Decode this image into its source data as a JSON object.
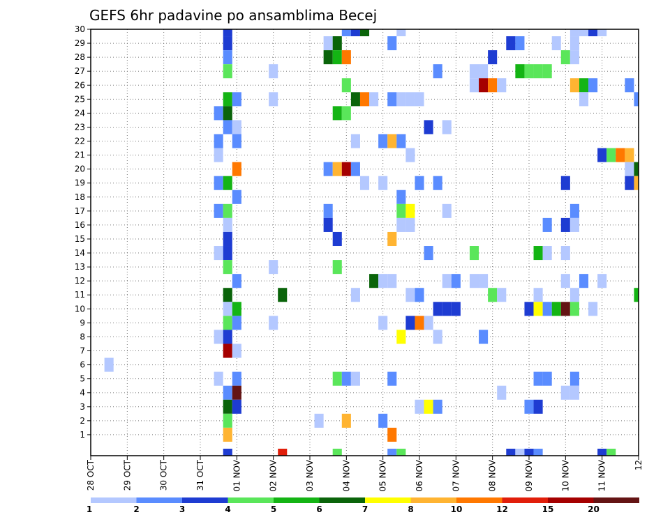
{
  "chart_data": {
    "type": "heatmap",
    "title": "GEFS 6hr padavine po ansamblima Becej",
    "xlabel": "",
    "ylabel": "",
    "x_tick_labels": [
      "28 OCT",
      "29 OCT",
      "30 OCT",
      "31 OCT",
      "01 NOV",
      "02 NOV",
      "03 NOV",
      "04 NOV",
      "05 NOV",
      "06 NOV",
      "07 NOV",
      "08 NOV",
      "09 NOV",
      "10 NOV",
      "11 NOV",
      "12"
    ],
    "y_tick_labels": [
      "1",
      "2",
      "3",
      "4",
      "5",
      "6",
      "7",
      "8",
      "9",
      "10",
      "11",
      "12",
      "13",
      "14",
      "15",
      "16",
      "17",
      "18",
      "19",
      "20",
      "21",
      "22",
      "23",
      "24",
      "25",
      "26",
      "27",
      "28",
      "29",
      "30"
    ],
    "x_range_steps": [
      0,
      60
    ],
    "y_range_members": [
      0,
      30
    ],
    "grid": "dotted",
    "colorbar": {
      "placement": "bottom",
      "tick_labels": [
        "1",
        "2",
        "3",
        "4",
        "5",
        "6",
        "7",
        "8",
        "10",
        "12",
        "15",
        "20"
      ],
      "colors": [
        "#b4c8ff",
        "#5a8cff",
        "#1e3cd2",
        "#5ae65a",
        "#14b414",
        "#0a640a",
        "#ffff00",
        "#ffb432",
        "#ff7800",
        "#e11e0a",
        "#a50000",
        "#641414"
      ]
    },
    "cells": [
      [
        15,
        30,
        3
      ],
      [
        28,
        30,
        2
      ],
      [
        29,
        30,
        3
      ],
      [
        30,
        30,
        6
      ],
      [
        34,
        30,
        1
      ],
      [
        53,
        30,
        1
      ],
      [
        54,
        30,
        1
      ],
      [
        55,
        30,
        3
      ],
      [
        56,
        30,
        1
      ],
      [
        15,
        29,
        3
      ],
      [
        26,
        29,
        1
      ],
      [
        27,
        29,
        6
      ],
      [
        33,
        29,
        2
      ],
      [
        46,
        29,
        3
      ],
      [
        47,
        29,
        2
      ],
      [
        51,
        29,
        1
      ],
      [
        53,
        29,
        1
      ],
      [
        15,
        28,
        2
      ],
      [
        26,
        28,
        6
      ],
      [
        27,
        28,
        5
      ],
      [
        28,
        28,
        9
      ],
      [
        44,
        28,
        3
      ],
      [
        52,
        28,
        4
      ],
      [
        53,
        28,
        1
      ],
      [
        15,
        27,
        4
      ],
      [
        20,
        27,
        1
      ],
      [
        38,
        27,
        2
      ],
      [
        42,
        27,
        1
      ],
      [
        43,
        27,
        1
      ],
      [
        47,
        27,
        5
      ],
      [
        48,
        27,
        4
      ],
      [
        49,
        27,
        4
      ],
      [
        50,
        27,
        4
      ],
      [
        28,
        26,
        4
      ],
      [
        42,
        26,
        1
      ],
      [
        43,
        26,
        11
      ],
      [
        44,
        26,
        9
      ],
      [
        45,
        26,
        1
      ],
      [
        53,
        26,
        8
      ],
      [
        54,
        26,
        5
      ],
      [
        55,
        26,
        2
      ],
      [
        59,
        26,
        2
      ],
      [
        15,
        25,
        5
      ],
      [
        16,
        25,
        2
      ],
      [
        20,
        25,
        1
      ],
      [
        29,
        25,
        6
      ],
      [
        30,
        25,
        9
      ],
      [
        31,
        25,
        1
      ],
      [
        33,
        25,
        2
      ],
      [
        34,
        25,
        1
      ],
      [
        35,
        25,
        1
      ],
      [
        36,
        25,
        1
      ],
      [
        54,
        25,
        1
      ],
      [
        60,
        25,
        2
      ],
      [
        14,
        24,
        2
      ],
      [
        15,
        24,
        6
      ],
      [
        27,
        24,
        5
      ],
      [
        28,
        24,
        4
      ],
      [
        15,
        23,
        2
      ],
      [
        16,
        23,
        1
      ],
      [
        37,
        23,
        3
      ],
      [
        39,
        23,
        1
      ],
      [
        14,
        22,
        2
      ],
      [
        16,
        22,
        2
      ],
      [
        29,
        22,
        1
      ],
      [
        32,
        22,
        2
      ],
      [
        33,
        22,
        8
      ],
      [
        34,
        22,
        2
      ],
      [
        14,
        21,
        1
      ],
      [
        35,
        21,
        1
      ],
      [
        56,
        21,
        3
      ],
      [
        57,
        21,
        4
      ],
      [
        58,
        21,
        9
      ],
      [
        59,
        21,
        8
      ],
      [
        16,
        20,
        9
      ],
      [
        26,
        20,
        2
      ],
      [
        27,
        20,
        8
      ],
      [
        28,
        20,
        11
      ],
      [
        29,
        20,
        2
      ],
      [
        59,
        20,
        1
      ],
      [
        60,
        20,
        6
      ],
      [
        14,
        19,
        2
      ],
      [
        15,
        19,
        5
      ],
      [
        30,
        19,
        1
      ],
      [
        32,
        19,
        1
      ],
      [
        36,
        19,
        2
      ],
      [
        38,
        19,
        2
      ],
      [
        52,
        19,
        3
      ],
      [
        59,
        19,
        3
      ],
      [
        60,
        19,
        8
      ],
      [
        16,
        18,
        2
      ],
      [
        34,
        18,
        2
      ],
      [
        14,
        17,
        2
      ],
      [
        15,
        17,
        4
      ],
      [
        26,
        17,
        2
      ],
      [
        34,
        17,
        4
      ],
      [
        35,
        17,
        7
      ],
      [
        39,
        17,
        1
      ],
      [
        53,
        17,
        2
      ],
      [
        15,
        16,
        1
      ],
      [
        26,
        16,
        3
      ],
      [
        34,
        16,
        1
      ],
      [
        35,
        16,
        1
      ],
      [
        50,
        16,
        2
      ],
      [
        52,
        16,
        3
      ],
      [
        53,
        16,
        1
      ],
      [
        15,
        15,
        3
      ],
      [
        27,
        15,
        3
      ],
      [
        33,
        15,
        8
      ],
      [
        14,
        14,
        1
      ],
      [
        15,
        14,
        3
      ],
      [
        37,
        14,
        2
      ],
      [
        42,
        14,
        4
      ],
      [
        49,
        14,
        5
      ],
      [
        50,
        14,
        1
      ],
      [
        52,
        14,
        1
      ],
      [
        15,
        13,
        4
      ],
      [
        20,
        13,
        1
      ],
      [
        27,
        13,
        4
      ],
      [
        16,
        12,
        2
      ],
      [
        31,
        12,
        6
      ],
      [
        32,
        12,
        1
      ],
      [
        33,
        12,
        1
      ],
      [
        39,
        12,
        1
      ],
      [
        40,
        12,
        2
      ],
      [
        42,
        12,
        1
      ],
      [
        43,
        12,
        1
      ],
      [
        52,
        12,
        1
      ],
      [
        54,
        12,
        2
      ],
      [
        56,
        12,
        1
      ],
      [
        15,
        11,
        6
      ],
      [
        21,
        11,
        6
      ],
      [
        29,
        11,
        1
      ],
      [
        35,
        11,
        1
      ],
      [
        36,
        11,
        2
      ],
      [
        44,
        11,
        4
      ],
      [
        45,
        11,
        1
      ],
      [
        49,
        11,
        1
      ],
      [
        53,
        11,
        1
      ],
      [
        60,
        11,
        5
      ],
      [
        15,
        10,
        1
      ],
      [
        16,
        10,
        5
      ],
      [
        38,
        10,
        3
      ],
      [
        39,
        10,
        3
      ],
      [
        40,
        10,
        3
      ],
      [
        48,
        10,
        3
      ],
      [
        49,
        10,
        7
      ],
      [
        50,
        10,
        2
      ],
      [
        51,
        10,
        5
      ],
      [
        52,
        10,
        12
      ],
      [
        53,
        10,
        4
      ],
      [
        55,
        10,
        1
      ],
      [
        15,
        9,
        4
      ],
      [
        16,
        9,
        2
      ],
      [
        20,
        9,
        1
      ],
      [
        32,
        9,
        1
      ],
      [
        35,
        9,
        3
      ],
      [
        36,
        9,
        9
      ],
      [
        37,
        9,
        1
      ],
      [
        14,
        8,
        1
      ],
      [
        15,
        8,
        3
      ],
      [
        34,
        8,
        7
      ],
      [
        38,
        8,
        1
      ],
      [
        43,
        8,
        2
      ],
      [
        15,
        7,
        11
      ],
      [
        16,
        7,
        1
      ],
      [
        2,
        6,
        1
      ],
      [
        14,
        5,
        1
      ],
      [
        16,
        5,
        2
      ],
      [
        27,
        5,
        4
      ],
      [
        28,
        5,
        2
      ],
      [
        29,
        5,
        1
      ],
      [
        33,
        5,
        2
      ],
      [
        49,
        5,
        2
      ],
      [
        50,
        5,
        2
      ],
      [
        53,
        5,
        2
      ],
      [
        15,
        4,
        2
      ],
      [
        16,
        4,
        12
      ],
      [
        45,
        4,
        1
      ],
      [
        52,
        4,
        1
      ],
      [
        53,
        4,
        1
      ],
      [
        15,
        3,
        6
      ],
      [
        16,
        3,
        3
      ],
      [
        36,
        3,
        1
      ],
      [
        37,
        3,
        7
      ],
      [
        38,
        3,
        2
      ],
      [
        48,
        3,
        2
      ],
      [
        49,
        3,
        3
      ],
      [
        15,
        2,
        4
      ],
      [
        25,
        2,
        1
      ],
      [
        28,
        2,
        8
      ],
      [
        32,
        2,
        2
      ],
      [
        15,
        1,
        8
      ],
      [
        33,
        1,
        9
      ],
      [
        15,
        0,
        3
      ],
      [
        21,
        0,
        10
      ],
      [
        27,
        0,
        4
      ],
      [
        33,
        0,
        2
      ],
      [
        34,
        0,
        4
      ],
      [
        46,
        0,
        3
      ],
      [
        47,
        0,
        1
      ],
      [
        48,
        0,
        3
      ],
      [
        49,
        0,
        2
      ],
      [
        56,
        0,
        3
      ],
      [
        57,
        0,
        4
      ]
    ]
  }
}
